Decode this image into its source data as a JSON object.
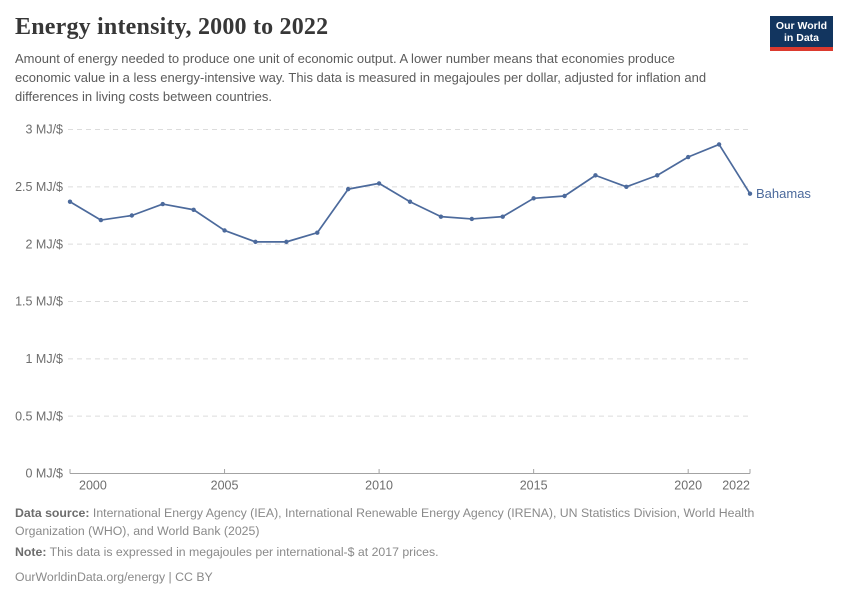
{
  "header": {
    "title": "Energy intensity, 2000 to 2022",
    "subtitle": "Amount of energy needed to produce one unit of economic output. A lower number means that economies produce economic value in a less energy-intensive way. This data is measured in megajoules per dollar, adjusted for inflation and differences in living costs between countries.",
    "logo_line1": "Our World",
    "logo_line2": "in Data"
  },
  "chart_data": {
    "type": "line",
    "title": "Energy intensity, 2000 to 2022",
    "x": [
      2000,
      2001,
      2002,
      2003,
      2004,
      2005,
      2006,
      2007,
      2008,
      2009,
      2010,
      2011,
      2012,
      2013,
      2014,
      2015,
      2016,
      2017,
      2018,
      2019,
      2020,
      2021,
      2022
    ],
    "series": [
      {
        "name": "Bahamas",
        "values": [
          2.37,
          2.21,
          2.25,
          2.35,
          2.3,
          2.12,
          2.02,
          2.02,
          2.1,
          2.48,
          2.53,
          2.37,
          2.24,
          2.22,
          2.24,
          2.4,
          2.42,
          2.6,
          2.5,
          2.6,
          2.76,
          2.87,
          2.44
        ]
      }
    ],
    "end_label": "Bahamas",
    "xlabel": "",
    "ylabel": "MJ/$",
    "xlim": [
      2000,
      2022
    ],
    "ylim": [
      0,
      3
    ],
    "x_ticks": [
      2000,
      2005,
      2010,
      2015,
      2020,
      2022
    ],
    "y_tick_values": [
      0,
      0.5,
      1,
      1.5,
      2,
      2.5,
      3
    ],
    "y_tick_labels": [
      "0 MJ/$",
      "0.5 MJ/$",
      "1 MJ/$",
      "1.5 MJ/$",
      "2 MJ/$",
      "2.5 MJ/$",
      "3 MJ/$"
    ],
    "grid": "horizontal-dashed",
    "legend_position": "end-of-line"
  },
  "footer": {
    "data_source_label": "Data source:",
    "data_source": "International Energy Agency (IEA), International Renewable Energy Agency (IRENA), UN Statistics Division, World Health Organization (WHO), and World Bank (2025)",
    "note_label": "Note:",
    "note": "This data is expressed in megajoules per international-$ at 2017 prices.",
    "license": "OurWorldinData.org/energy | CC BY"
  },
  "colors": {
    "line": "#4c6a9c",
    "grid": "#dcdcdc",
    "axis": "#a3a3a3",
    "tick_text": "#6e6e6e",
    "title_text": "#373737",
    "subtitle_text": "#5b5b5b",
    "footer_text": "#8a8a8a",
    "logo_background": "#12355f",
    "logo_red": "#dc3a2e",
    "background": "#ffffff"
  }
}
